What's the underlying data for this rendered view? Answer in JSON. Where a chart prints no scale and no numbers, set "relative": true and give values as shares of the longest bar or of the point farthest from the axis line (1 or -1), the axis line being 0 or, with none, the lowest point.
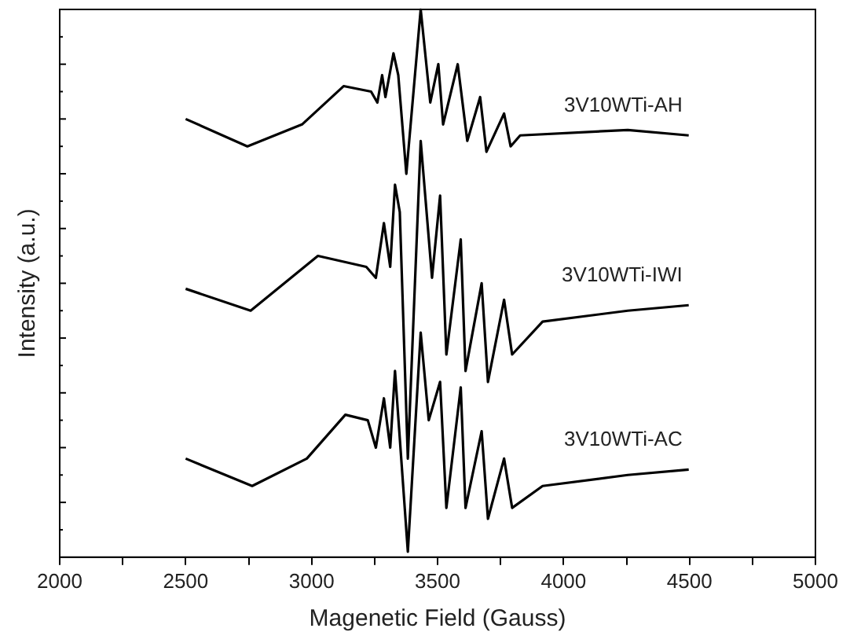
{
  "chart_data": {
    "type": "line",
    "relative": true,
    "xlabel": "Magenetic Field (Gauss)",
    "ylabel": "Intensity (a.u.)",
    "xlim": [
      2000,
      5000
    ],
    "xticks": [
      2000,
      {
        "value": 2250,
        "label": null
      },
      2500,
      {
        "value": 2750,
        "label": null
      },
      3000,
      {
        "value": 3250,
        "label": null
      },
      3500,
      {
        "value": 3750,
        "label": null
      },
      4000,
      {
        "value": 4250,
        "label": null
      },
      4500,
      {
        "value": 4750,
        "label": null
      },
      5000
    ],
    "grid": false,
    "legend": false,
    "marker": "none",
    "line_style": "solid",
    "series": [
      {
        "name": "3V10WTi-AH",
        "color": "#000000",
        "x": [
          2500,
          2745,
          2962,
          3127,
          3236,
          3261,
          3280,
          3293,
          3325,
          3344,
          3376,
          3433,
          3471,
          3503,
          3522,
          3580,
          3618,
          3669,
          3694,
          3764,
          3790,
          3828,
          4255,
          4497
        ],
        "values": [
          0.8,
          0.75,
          0.79,
          0.86,
          0.85,
          0.83,
          0.88,
          0.84,
          0.92,
          0.88,
          0.7,
          1.0,
          0.83,
          0.9,
          0.79,
          0.9,
          0.76,
          0.84,
          0.74,
          0.81,
          0.75,
          0.77,
          0.78,
          0.77
        ]
      },
      {
        "name": "3V10WTi-IWI",
        "color": "#000000",
        "x": [
          2500,
          2758,
          3025,
          3217,
          3255,
          3287,
          3312,
          3331,
          3350,
          3382,
          3433,
          3478,
          3510,
          3535,
          3592,
          3611,
          3675,
          3700,
          3764,
          3796,
          3917,
          4255,
          4497
        ],
        "values": [
          0.49,
          0.45,
          0.55,
          0.53,
          0.51,
          0.61,
          0.53,
          0.68,
          0.63,
          0.18,
          0.76,
          0.51,
          0.66,
          0.37,
          0.58,
          0.34,
          0.5,
          0.32,
          0.47,
          0.37,
          0.43,
          0.45,
          0.46
        ]
      },
      {
        "name": "3V10WTi-AC",
        "color": "#000000",
        "x": [
          2500,
          2764,
          2981,
          3134,
          3223,
          3255,
          3287,
          3312,
          3331,
          3382,
          3433,
          3465,
          3510,
          3535,
          3592,
          3611,
          3675,
          3700,
          3764,
          3796,
          3917,
          4255,
          4497
        ],
        "values": [
          0.18,
          0.13,
          0.18,
          0.26,
          0.25,
          0.2,
          0.29,
          0.2,
          0.34,
          0.01,
          0.41,
          0.25,
          0.32,
          0.09,
          0.31,
          0.09,
          0.23,
          0.07,
          0.18,
          0.09,
          0.13,
          0.15,
          0.16
        ]
      }
    ]
  }
}
